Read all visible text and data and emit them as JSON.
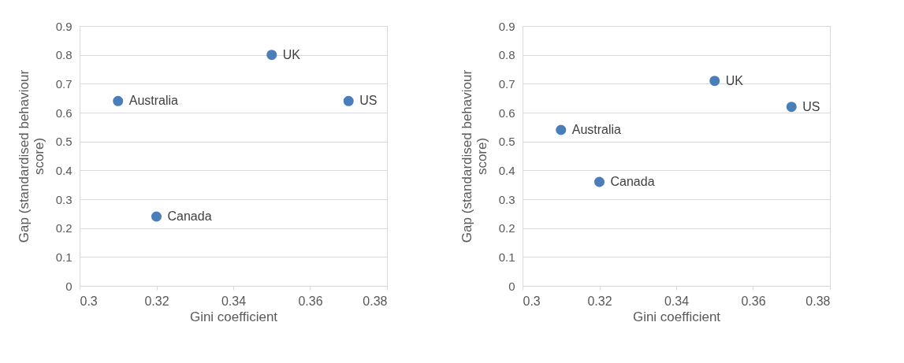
{
  "chart_data": [
    {
      "type": "scatter",
      "xlabel": "Gini coefficient",
      "ylabel": "Gap (standardised behaviour score)",
      "x": [
        0.31,
        0.32,
        0.35,
        0.37
      ],
      "series": [
        {
          "color": "#4a7ebb",
          "values": [
            0.64,
            0.24,
            0.8,
            0.64
          ]
        }
      ],
      "annotations": [
        {
          "text": "Australia",
          "x": 0.31,
          "y": 0.64
        },
        {
          "text": "Canada",
          "x": 0.32,
          "y": 0.24
        },
        {
          "text": "UK",
          "x": 0.35,
          "y": 0.8
        },
        {
          "text": "US",
          "x": 0.37,
          "y": 0.64
        }
      ],
      "xlim": [
        0.3,
        0.38
      ],
      "xticks": [
        0.3,
        0.32,
        0.34,
        0.36,
        0.38
      ],
      "ylim": [
        0,
        0.9
      ],
      "yticks": [
        0,
        0.1,
        0.2,
        0.3,
        0.4,
        0.5,
        0.6,
        0.7,
        0.8,
        0.9
      ],
      "grid": "y",
      "marker": "circle",
      "legend": false
    },
    {
      "type": "scatter",
      "xlabel": "Gini coefficient",
      "ylabel": "Gap (standardised behaviour score)",
      "x": [
        0.31,
        0.32,
        0.35,
        0.37
      ],
      "series": [
        {
          "color": "#4a7ebb",
          "values": [
            0.54,
            0.36,
            0.71,
            0.62
          ]
        }
      ],
      "annotations": [
        {
          "text": "Australia",
          "x": 0.31,
          "y": 0.54
        },
        {
          "text": "Canada",
          "x": 0.32,
          "y": 0.36
        },
        {
          "text": "UK",
          "x": 0.35,
          "y": 0.71
        },
        {
          "text": "US",
          "x": 0.37,
          "y": 0.62
        }
      ],
      "xlim": [
        0.3,
        0.38
      ],
      "xticks": [
        0.3,
        0.32,
        0.34,
        0.36,
        0.38
      ],
      "ylim": [
        0,
        0.9
      ],
      "yticks": [
        0,
        0.1,
        0.2,
        0.3,
        0.4,
        0.5,
        0.6,
        0.7,
        0.8,
        0.9
      ],
      "grid": "y",
      "marker": "circle",
      "legend": false
    }
  ]
}
